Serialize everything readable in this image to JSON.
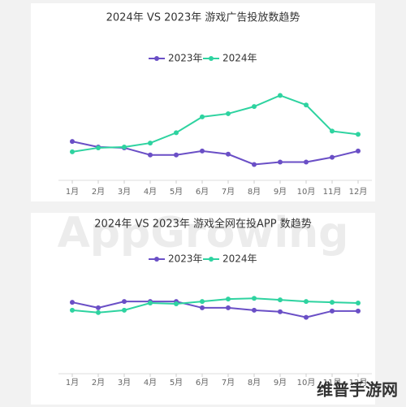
{
  "chart_data": [
    {
      "type": "line",
      "title": "2024年 VS 2023年 游戏广告投放数趋势",
      "categories": [
        "1月",
        "2月",
        "3月",
        "4月",
        "5月",
        "6月",
        "7月",
        "8月",
        "9月",
        "10月",
        "11月",
        "12月"
      ],
      "ylim": [
        0,
        130
      ],
      "series": [
        {
          "name": "2023年",
          "color": "#6a4fc6",
          "values": [
            49,
            42,
            41,
            32,
            32,
            37,
            33,
            20,
            23,
            23,
            29,
            37
          ]
        },
        {
          "name": "2024年",
          "color": "#2ed3a0",
          "values": [
            36,
            41,
            42,
            47,
            60,
            80,
            84,
            93,
            107,
            95,
            62,
            58
          ]
        }
      ]
    },
    {
      "type": "line",
      "title": "2024年 VS 2023年 游戏全网在投APP 数趋势",
      "categories": [
        "1月",
        "2月",
        "3月",
        "4月",
        "5月",
        "6月",
        "7月",
        "8月",
        "9月",
        "10月",
        "11月",
        "12月"
      ],
      "ylim": [
        0,
        130
      ],
      "series": [
        {
          "name": "2023年",
          "color": "#6a4fc6",
          "values": [
            90,
            83,
            91,
            91,
            91,
            83,
            83,
            80,
            78,
            71,
            79,
            79
          ]
        },
        {
          "name": "2024年",
          "color": "#2ed3a0",
          "values": [
            80,
            77,
            80,
            89,
            88,
            91,
            94,
            95,
            93,
            91,
            90,
            89
          ]
        }
      ]
    }
  ],
  "watermark": "AppGrowing",
  "corner_logo": "维普手游网"
}
